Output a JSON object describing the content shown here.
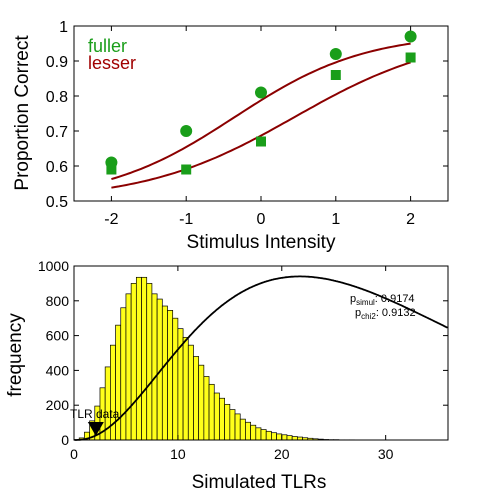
{
  "colors": {
    "fuller": "#1a9e1a",
    "lesser": "#a00000",
    "curve": "#8b0000",
    "hist_fill": "#ffff1a",
    "hist_edge": "#000000",
    "fit_line": "#000000"
  },
  "chart_data": [
    {
      "type": "scatter",
      "xlabel": "Stimulus Intensity",
      "ylabel": "Proportion Correct",
      "xlim": [
        -2.5,
        2.5
      ],
      "ylim": [
        0.5,
        1.0
      ],
      "xticks": [
        -2,
        -1,
        0,
        1,
        2
      ],
      "xtick_labels": [
        "-2",
        "-1",
        "0",
        "1",
        "2"
      ],
      "yticks": [
        0.5,
        0.6,
        0.7,
        0.8,
        0.9,
        1.0
      ],
      "ytick_labels": [
        "0.5",
        "0.6",
        "0.7",
        "0.8",
        "0.9",
        "1"
      ],
      "legend_position": "top-left",
      "series": [
        {
          "name": "fuller",
          "marker": "circle",
          "x": [
            -2,
            -1,
            0,
            1,
            2
          ],
          "y": [
            0.61,
            0.7,
            0.81,
            0.92,
            0.97
          ],
          "fit": {
            "threshold": -0.35,
            "slope": 1.15,
            "guess": 0.5,
            "lapse": 0.02
          }
        },
        {
          "name": "lesser",
          "marker": "square",
          "x": [
            -2,
            -1,
            0,
            1,
            2
          ],
          "y": [
            0.59,
            0.59,
            0.67,
            0.86,
            0.91
          ],
          "fit": {
            "threshold": 0.45,
            "slope": 1.0,
            "guess": 0.5,
            "lapse": 0.02
          }
        }
      ]
    },
    {
      "type": "bar",
      "xlabel": "Simulated TLRs",
      "ylabel": "frequency",
      "xlim": [
        0,
        36
      ],
      "ylim": [
        0,
        1000
      ],
      "xticks": [
        0,
        10,
        20,
        30
      ],
      "xtick_labels": [
        "0",
        "10",
        "20",
        "30"
      ],
      "yticks": [
        0,
        200,
        400,
        600,
        800,
        1000
      ],
      "ytick_labels": [
        "0",
        "200",
        "400",
        "600",
        "800",
        "1000"
      ],
      "bin_start": 0,
      "bin_width": 0.5,
      "values": [
        2,
        12,
        45,
        110,
        195,
        300,
        420,
        545,
        660,
        760,
        840,
        900,
        935,
        935,
        900,
        840,
        810,
        770,
        745,
        700,
        640,
        590,
        545,
        480,
        430,
        365,
        320,
        270,
        240,
        205,
        175,
        150,
        120,
        102,
        85,
        70,
        60,
        50,
        42,
        35,
        30,
        25,
        20,
        17,
        13,
        10,
        7,
        5,
        3,
        2,
        2,
        1,
        1,
        1
      ],
      "chi2_fit": {
        "df": 7,
        "scale": 4.35,
        "peak": 940
      },
      "marker_x": 2.1,
      "annotation": "TLR data",
      "stats": {
        "p_simul_label": "p",
        "p_simul_sub": "simul",
        "p_simul_value": ": 0.9174",
        "p_chi2_label": "p",
        "p_chi2_sub": "chi2",
        "p_chi2_value": ": 0.9132"
      }
    }
  ]
}
